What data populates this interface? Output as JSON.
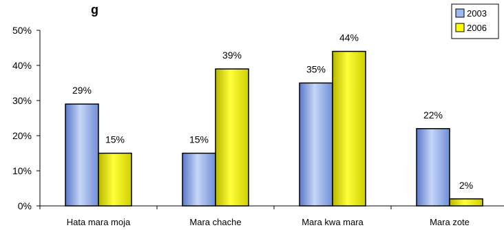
{
  "chart_data": {
    "type": "bar",
    "title": "g",
    "categories": [
      "Hata mara moja",
      "Mara chache",
      "Mara kwa mara",
      "Mara zote"
    ],
    "series": [
      {
        "name": "2003",
        "values": [
          29,
          15,
          35,
          22
        ],
        "labels": [
          "29%",
          "15%",
          "35%",
          "22%"
        ],
        "color": "#9DB9F2"
      },
      {
        "name": "2006",
        "values": [
          15,
          39,
          44,
          2
        ],
        "labels": [
          "15%",
          "39%",
          "44%",
          "2%"
        ],
        "color": "#FFFF00"
      }
    ],
    "ylim": [
      0,
      50
    ],
    "yticks": [
      "0%",
      "10%",
      "20%",
      "30%",
      "40%",
      "50%"
    ],
    "ytick_values": [
      0,
      10,
      20,
      30,
      40,
      50
    ],
    "legend_position": "top-right",
    "grid": false
  }
}
